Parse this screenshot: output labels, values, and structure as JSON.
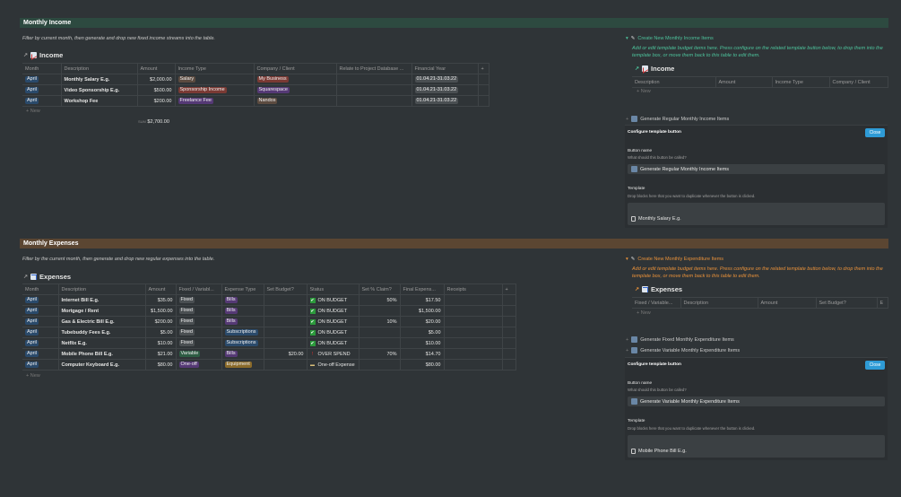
{
  "income_section": {
    "heading": "Monthly Income",
    "hint": "Filter by current month, then generate and drop new fixed income streams into the table.",
    "db_title": "Income",
    "columns": [
      "Month",
      "Description",
      "Amount",
      "Income Type",
      "Company / Client",
      "Relate to Project Database ...",
      "Financial Year",
      "+"
    ],
    "rows": [
      {
        "month": "April",
        "description": "Monthly Salary E.g.",
        "amount": "$2,000.00",
        "type": "Salary",
        "company": "My Business",
        "year": "01.04.21-31.03.22"
      },
      {
        "month": "April",
        "description": "Video Sponsorship E.g.",
        "amount": "$500.00",
        "type": "Sponsorship Income",
        "company": "Squarespace",
        "year": "01.04.21-31.03.22"
      },
      {
        "month": "April",
        "description": "Workshop Fee",
        "amount": "$200.00",
        "type": "Freelance Fee",
        "company": "Nandos",
        "year": "01.04.21-31.03.22"
      }
    ],
    "new_label": "+ New",
    "sum_label": "SUM",
    "sum_value": "$2,700.00"
  },
  "expense_section": {
    "heading": "Monthly Expenses",
    "hint": "Filter by the current month, then generate and drop new regular expenses into the table.",
    "db_title": "Expenses",
    "columns": [
      "Month",
      "Description",
      "Amount",
      "Fixed / Variabl...",
      "Expense Type",
      "Set Budget?",
      "Status",
      "Set % Claim?",
      "Final Expens...",
      "Receipts",
      "+"
    ],
    "rows": [
      {
        "month": "April",
        "description": "Internet Bill E.g.",
        "amount": "$35.00",
        "fv": "Fixed",
        "type": "Bills",
        "budget": "",
        "status": "ON BUDGET",
        "status_icon": "check",
        "claim": "50%",
        "final": "$17.50"
      },
      {
        "month": "April",
        "description": "Mortgage / Rent",
        "amount": "$1,500.00",
        "fv": "Fixed",
        "type": "Bills",
        "budget": "",
        "status": "ON BUDGET",
        "status_icon": "check",
        "claim": "",
        "final": "$1,500.00"
      },
      {
        "month": "April",
        "description": "Gas & Electric Bill E.g.",
        "amount": "$200.00",
        "fv": "Fixed",
        "type": "Bills",
        "budget": "",
        "status": "ON BUDGET",
        "status_icon": "check",
        "claim": "10%",
        "final": "$20.00"
      },
      {
        "month": "April",
        "description": "Tubebuddy Fees E.g.",
        "amount": "$5.00",
        "fv": "Fixed",
        "type": "Subscriptions",
        "budget": "",
        "status": "ON BUDGET",
        "status_icon": "check",
        "claim": "",
        "final": "$5.00"
      },
      {
        "month": "April",
        "description": "Netflix E.g.",
        "amount": "$10.00",
        "fv": "Fixed",
        "type": "Subscriptions",
        "budget": "",
        "status": "ON BUDGET",
        "status_icon": "check",
        "claim": "",
        "final": "$10.00"
      },
      {
        "month": "April",
        "description": "Mobile Phone Bill E.g.",
        "amount": "$21.00",
        "fv": "Variable",
        "type": "Bills",
        "budget": "$20.00",
        "status": "OVER SPEND",
        "status_icon": "exclamation",
        "claim": "70%",
        "final": "$14.70"
      },
      {
        "month": "April",
        "description": "Computer Keyboard E.g.",
        "amount": "$80.00",
        "fv": "One-off",
        "type": "Equipment",
        "budget": "",
        "status": "One-off Expense",
        "status_icon": "card",
        "claim": "",
        "final": "$80.00"
      }
    ],
    "new_label": "+ New"
  },
  "tag_colors": {
    "April": "#2a4a6b",
    "Salary": "#5c4b40",
    "Sponsorship Income": "#7a3a34",
    "Freelance Fee": "#553975",
    "My Business": "#7a3a34",
    "Squarespace": "#553975",
    "Nandos": "#5c4b40",
    "Fixed": "#4a4f52",
    "Variable": "#2d5c43",
    "One-off": "#553975",
    "Bills": "#553975",
    "Subscriptions": "#2a4a6b",
    "Equipment": "#8a6a2a",
    "year": "#4a4f52"
  },
  "income_template": {
    "toggle": "Create New Monthly Income Items",
    "hint": "Add or edit template budget items here. Press configure on the related template button below, to drop them into the template box, or move them back to this table to edit them.",
    "db_title": "Income",
    "columns": [
      "Description",
      "Amount",
      "Income Type",
      "Company / Client"
    ],
    "new_label": "+ New",
    "generate": "Generate Regular Monthly Income Items",
    "configure": "Configure template button",
    "close": "Close",
    "button_name_label": "Button name",
    "button_name_sub": "What should this button be called?",
    "button_name_value": "Generate Regular Monthly Income Items",
    "template_label": "Template",
    "template_sub": "Drop blocks here that you want to duplicate whenever the button is clicked.",
    "template_item": "Monthly Salary E.g."
  },
  "expense_template": {
    "toggle": "Create New Monthly Expenditure Items",
    "hint": "Add or edit template budget items here. Press configure on the related template button below, to drop them into the template box, or move them back to this table to edit them.",
    "db_title": "Expenses",
    "columns": [
      "Fixed / Variable...",
      "Description",
      "Amount",
      "Set Budget?",
      "E"
    ],
    "new_label": "+ New",
    "generate_fixed": "Generate Fixed Monthly Expenditure Items",
    "generate_variable": "Generate Variable Monthly Expenditure Items",
    "configure": "Configure template button",
    "close": "Close",
    "button_name_label": "Button name",
    "button_name_sub": "What should this button be called?",
    "button_name_value": "Generate Variable Monthly Expenditure Items",
    "template_label": "Template",
    "template_sub": "Drop blocks here that you want to duplicate whenever the button is clicked.",
    "template_item": "Mobile Phone Bill E.g."
  }
}
